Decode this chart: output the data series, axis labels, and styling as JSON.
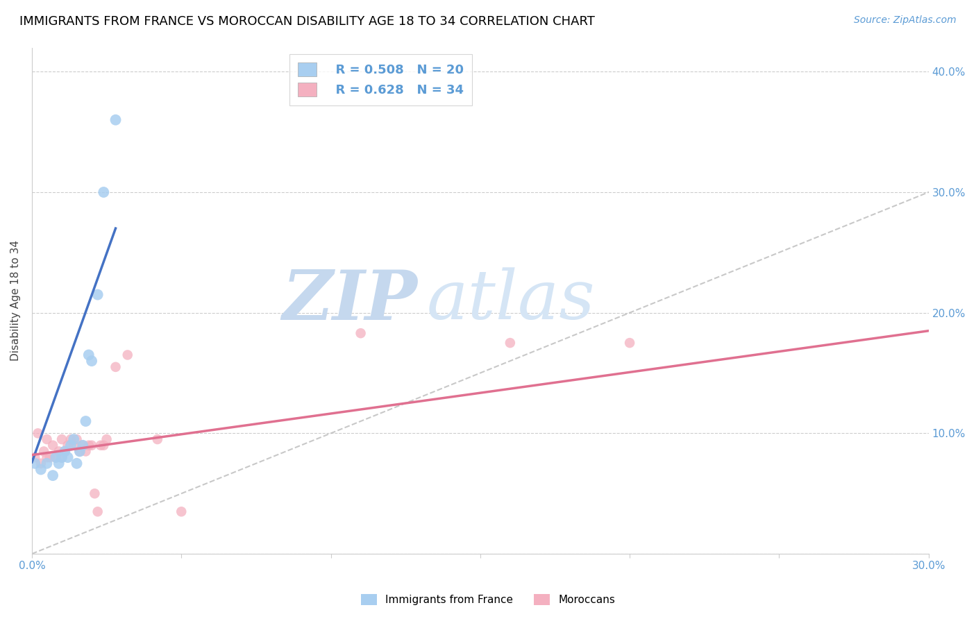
{
  "title": "IMMIGRANTS FROM FRANCE VS MOROCCAN DISABILITY AGE 18 TO 34 CORRELATION CHART",
  "source": "Source: ZipAtlas.com",
  "ylabel": "Disability Age 18 to 34",
  "xlabel": "",
  "xlim": [
    0.0,
    0.3
  ],
  "ylim": [
    0.0,
    0.42
  ],
  "ytick_labels": [
    "",
    "10.0%",
    "20.0%",
    "30.0%",
    "40.0%"
  ],
  "ytick_vals": [
    0.0,
    0.1,
    0.2,
    0.3,
    0.4
  ],
  "xtick_labels": [
    "0.0%",
    "",
    "",
    "",
    "",
    "",
    "30.0%"
  ],
  "xtick_vals": [
    0.0,
    0.05,
    0.1,
    0.15,
    0.2,
    0.25,
    0.3
  ],
  "blue_R": 0.508,
  "blue_N": 20,
  "pink_R": 0.628,
  "pink_N": 34,
  "blue_color": "#A8CEF0",
  "pink_color": "#F4B0C0",
  "blue_line_color": "#4472C4",
  "pink_line_color": "#E07090",
  "diagonal_color": "#BBBBBB",
  "watermark_zip": "ZIP",
  "watermark_atlas": "atlas",
  "blue_x": [
    0.001,
    0.003,
    0.005,
    0.007,
    0.008,
    0.009,
    0.01,
    0.011,
    0.012,
    0.013,
    0.014,
    0.015,
    0.016,
    0.017,
    0.018,
    0.019,
    0.02,
    0.022,
    0.024,
    0.028
  ],
  "blue_y": [
    0.075,
    0.07,
    0.075,
    0.065,
    0.08,
    0.075,
    0.08,
    0.085,
    0.08,
    0.09,
    0.095,
    0.075,
    0.085,
    0.09,
    0.11,
    0.165,
    0.16,
    0.215,
    0.3,
    0.36
  ],
  "pink_x": [
    0.001,
    0.002,
    0.003,
    0.004,
    0.005,
    0.005,
    0.006,
    0.007,
    0.008,
    0.009,
    0.01,
    0.01,
    0.011,
    0.012,
    0.013,
    0.014,
    0.015,
    0.016,
    0.017,
    0.018,
    0.019,
    0.02,
    0.021,
    0.022,
    0.023,
    0.024,
    0.025,
    0.028,
    0.032,
    0.042,
    0.05,
    0.11,
    0.16,
    0.2
  ],
  "pink_y": [
    0.08,
    0.1,
    0.075,
    0.085,
    0.08,
    0.095,
    0.08,
    0.09,
    0.08,
    0.085,
    0.08,
    0.095,
    0.085,
    0.09,
    0.095,
    0.09,
    0.095,
    0.085,
    0.09,
    0.085,
    0.09,
    0.09,
    0.05,
    0.035,
    0.09,
    0.09,
    0.095,
    0.155,
    0.165,
    0.095,
    0.035,
    0.183,
    0.175,
    0.175
  ],
  "blue_line_x0": 0.0,
  "blue_line_y0": 0.076,
  "blue_line_x1": 0.028,
  "blue_line_y1": 0.27,
  "pink_line_x0": 0.0,
  "pink_line_y0": 0.082,
  "pink_line_x1": 0.3,
  "pink_line_y1": 0.185,
  "blue_size": 130,
  "pink_size": 110,
  "background_color": "#FFFFFF",
  "grid_color": "#CCCCCC",
  "tick_color": "#5B9BD5",
  "title_color": "#000000",
  "title_fontsize": 13,
  "legend_fontsize": 13,
  "ylabel_fontsize": 11,
  "source_fontsize": 10,
  "watermark_color_zip": "#C5D8EE",
  "watermark_color_atlas": "#D5E5F5",
  "watermark_fontsize": 72
}
